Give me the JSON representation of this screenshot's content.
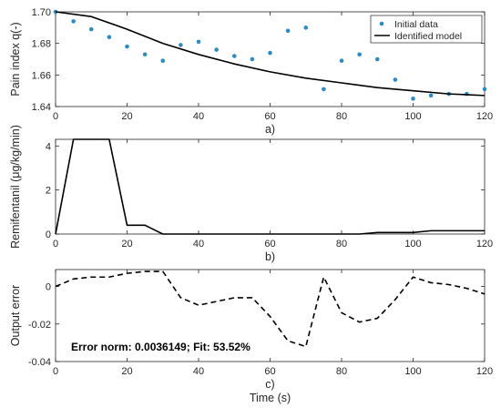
{
  "chart_data": [
    {
      "type": "scatter",
      "panel_label": "a)",
      "xlabel": "",
      "ylabel": "Pain index q(-)",
      "xlim": [
        0,
        120
      ],
      "ylim": [
        1.64,
        1.7
      ],
      "xticks": [
        "0",
        "20",
        "40",
        "60",
        "80",
        "100",
        "120"
      ],
      "yticks": [
        "1.64",
        "1.66",
        "1.68",
        "1.70"
      ],
      "grid": false,
      "legend_position": "top-right",
      "series": [
        {
          "name": "Initial data",
          "kind": "markers",
          "color": "#2e8bc0",
          "x": [
            0,
            5,
            10,
            15,
            20,
            25,
            30,
            35,
            40,
            45,
            50,
            55,
            60,
            65,
            70,
            75,
            80,
            85,
            90,
            95,
            100,
            105,
            110,
            115,
            120
          ],
          "y": [
            1.7,
            1.694,
            1.689,
            1.684,
            1.678,
            1.673,
            1.669,
            1.679,
            1.681,
            1.676,
            1.672,
            1.67,
            1.674,
            1.688,
            1.69,
            1.651,
            1.669,
            1.673,
            1.67,
            1.657,
            1.645,
            1.647,
            1.648,
            1.648,
            1.651
          ]
        },
        {
          "name": "Identified model",
          "kind": "line",
          "color": "#000000",
          "x": [
            0,
            10,
            20,
            30,
            40,
            50,
            60,
            70,
            80,
            90,
            100,
            110,
            120
          ],
          "y": [
            1.7,
            1.697,
            1.689,
            1.68,
            1.673,
            1.667,
            1.662,
            1.658,
            1.655,
            1.652,
            1.65,
            1.648,
            1.647
          ]
        }
      ]
    },
    {
      "type": "line",
      "panel_label": "b)",
      "xlabel": "",
      "ylabel": "Remifentanil (μg/kg/min)",
      "xlim": [
        0,
        120
      ],
      "ylim": [
        0,
        4.3
      ],
      "xticks": [
        "0",
        "20",
        "40",
        "60",
        "80",
        "100",
        "120"
      ],
      "yticks": [
        "0",
        "2",
        "4"
      ],
      "grid": false,
      "series": [
        {
          "kind": "line",
          "color": "#000000",
          "x": [
            0,
            5,
            15,
            20,
            25,
            30,
            85,
            90,
            100,
            105,
            120
          ],
          "y": [
            0,
            4.3,
            4.3,
            0.4,
            0.4,
            0,
            0,
            0.07,
            0.07,
            0.15,
            0.15
          ]
        }
      ]
    },
    {
      "type": "line",
      "panel_label": "c)",
      "xlabel": "Time (s)",
      "ylabel": "Output error",
      "xlim": [
        0,
        120
      ],
      "ylim": [
        -0.04,
        0.009
      ],
      "xticks": [
        "0",
        "20",
        "40",
        "60",
        "80",
        "100",
        "120"
      ],
      "yticks": [
        "-0.04",
        "-0.02",
        "0"
      ],
      "grid": false,
      "annotation": "Error norm: 0.0036149; Fit: 53.52%",
      "series": [
        {
          "kind": "dashed",
          "color": "#000000",
          "x": [
            0,
            5,
            10,
            15,
            20,
            25,
            30,
            35,
            40,
            45,
            50,
            55,
            60,
            65,
            70,
            75,
            80,
            85,
            90,
            95,
            100,
            105,
            110,
            115,
            120
          ],
          "y": [
            0.0,
            0.004,
            0.005,
            0.005,
            0.007,
            0.008,
            0.008,
            -0.006,
            -0.01,
            -0.008,
            -0.006,
            -0.006,
            -0.016,
            -0.029,
            -0.032,
            0.005,
            -0.014,
            -0.019,
            -0.017,
            -0.007,
            0.005,
            0.002,
            0.001,
            -0.001,
            -0.004
          ]
        }
      ]
    }
  ]
}
